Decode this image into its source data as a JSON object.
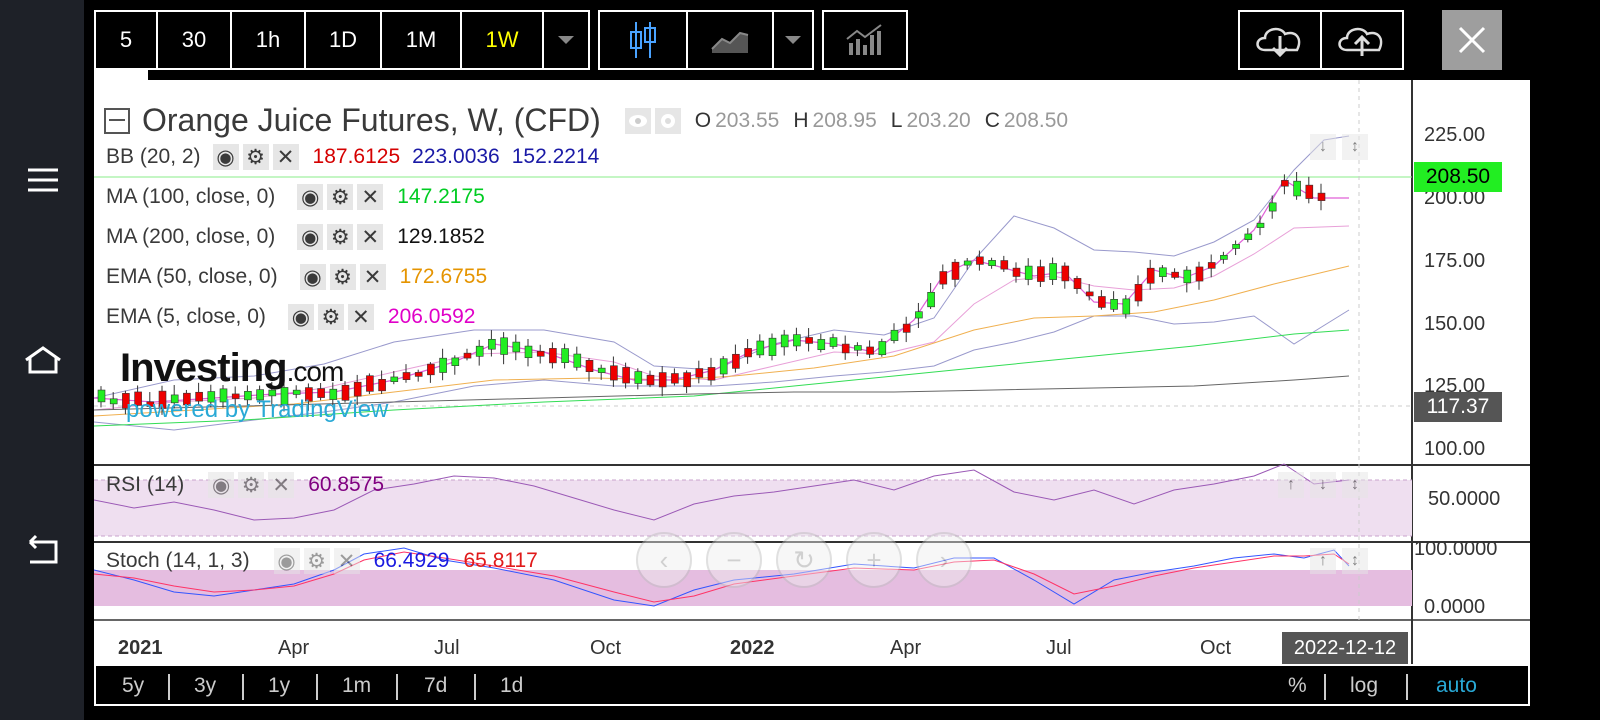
{
  "toolbar": {
    "intervals": [
      "5",
      "30",
      "1h",
      "1D",
      "1M",
      "1W"
    ],
    "active_interval": "1W"
  },
  "chart": {
    "title": "Orange Juice Futures, W, (CFD)",
    "ohlc": {
      "o_label": "O",
      "o": "203.55",
      "h_label": "H",
      "h": "208.95",
      "l_label": "L",
      "l": "203.20",
      "c_label": "C",
      "c": "208.50"
    },
    "indicators": [
      {
        "name": "BB (20, 2)",
        "values": [
          "187.6125",
          "223.0036",
          "152.2214"
        ],
        "colors": [
          "#d50000",
          "#1a1aa6",
          "#1a1aa6"
        ]
      },
      {
        "name": "MA (100, close, 0)",
        "values": [
          "147.2175"
        ],
        "colors": [
          "#00cc22"
        ]
      },
      {
        "name": "MA (200, close, 0)",
        "values": [
          "129.1852"
        ],
        "colors": [
          "#111111"
        ]
      },
      {
        "name": "EMA (50, close, 0)",
        "values": [
          "172.6755"
        ],
        "colors": [
          "#e59400"
        ]
      },
      {
        "name": "EMA (5, close, 0)",
        "values": [
          "206.0592"
        ],
        "colors": [
          "#e000c8"
        ]
      }
    ],
    "watermark": {
      "brand": "Investing",
      "suffix": ".com",
      "powered": "powered by TradingView"
    },
    "price_axis": [
      "225.00",
      "200.00",
      "175.00",
      "150.00",
      "125.00",
      "100.00"
    ],
    "current_price": "208.50",
    "crosshair_price": "117.37",
    "rsi": {
      "name": "RSI (14)",
      "value": "60.8575",
      "axis": "50.0000"
    },
    "stoch": {
      "name": "Stoch (14, 1, 3)",
      "k": "66.4929",
      "d": "65.8117",
      "axis_top": "100.0000",
      "axis_bottom": "0.0000"
    },
    "time_axis": [
      "2021",
      "Apr",
      "Jul",
      "Oct",
      "2022",
      "Apr",
      "Jul",
      "Oct"
    ],
    "crosshair_date": "2022-12-12"
  },
  "ranges": [
    "5y",
    "3y",
    "1y",
    "1m",
    "7d",
    "1d"
  ],
  "scale_options": {
    "percent": "%",
    "log": "log",
    "auto": "auto"
  },
  "colors": {
    "up": "#22ee22",
    "down": "#ee0000",
    "price_tag": "#22ee22",
    "bb": "#9999cc",
    "rsi_band": "#efdff0"
  }
}
